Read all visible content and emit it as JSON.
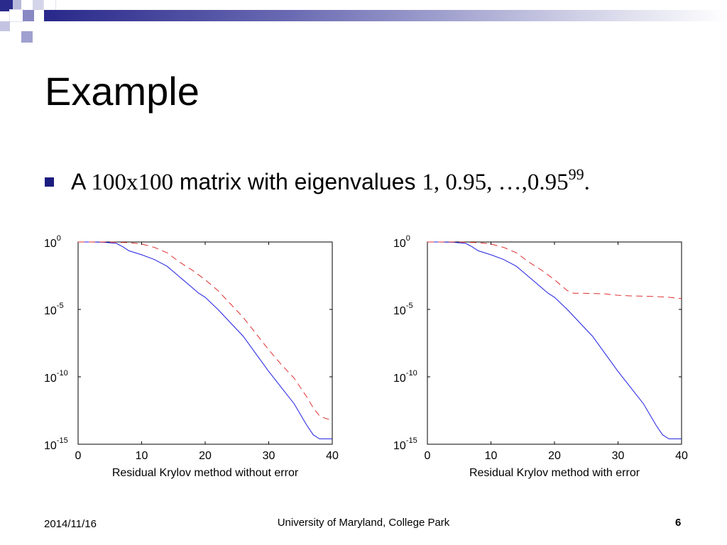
{
  "slide": {
    "title": "Example",
    "bullet": {
      "text_prefix": "A ",
      "matrix_size": "100x100",
      "text_mid": " matrix with eigenvalues ",
      "eigen_list": "1, 0.95, …,0.95",
      "eigen_exponent": "99",
      "text_suffix": "."
    },
    "footer": {
      "date": "2014/11/16",
      "institution": "University of Maryland, College Park",
      "page": "6"
    },
    "colors": {
      "accent": "#1c1c80",
      "line_solid": "#1f1fe0",
      "line_dashed": "#e03030"
    }
  },
  "chart_data": [
    {
      "type": "line",
      "title": "",
      "xlabel": "Residual Krylov method without error",
      "ylabel": "",
      "xlim": [
        0,
        40
      ],
      "ylim": [
        1e-15,
        1
      ],
      "yscale": "log",
      "x_ticks": [
        "0",
        "10",
        "20",
        "30",
        "40"
      ],
      "y_ticks": [
        {
          "base": "10",
          "exp": "0",
          "value": 0
        },
        {
          "base": "10",
          "exp": "-5",
          "value": -5
        },
        {
          "base": "10",
          "exp": "-10",
          "value": -10
        },
        {
          "base": "10",
          "exp": "-15",
          "value": -15
        }
      ],
      "series": [
        {
          "style": "solid",
          "color": "#1f1fe0",
          "x": [
            0,
            2,
            4,
            6,
            7,
            8,
            10,
            12,
            14,
            15,
            16,
            18,
            19,
            20,
            22,
            24,
            26,
            28,
            30,
            32,
            34,
            36,
            37,
            38,
            40
          ],
          "log10": [
            0,
            0,
            -0.02,
            -0.1,
            -0.35,
            -0.65,
            -0.95,
            -1.3,
            -1.8,
            -2.2,
            -2.6,
            -3.4,
            -3.8,
            -4.1,
            -5.0,
            -6.0,
            -7.0,
            -8.3,
            -9.6,
            -10.8,
            -12.0,
            -13.6,
            -14.3,
            -14.6,
            -14.6
          ]
        },
        {
          "style": "dashed",
          "color": "#e03030",
          "x": [
            0,
            2,
            4,
            6,
            8,
            10,
            12,
            14,
            16,
            18,
            20,
            22,
            24,
            26,
            28,
            30,
            32,
            34,
            36,
            37,
            38,
            39,
            40
          ],
          "log10": [
            0,
            0,
            0,
            -0.02,
            -0.05,
            -0.15,
            -0.4,
            -0.8,
            -1.5,
            -2.1,
            -2.8,
            -3.6,
            -4.6,
            -5.6,
            -6.8,
            -8.0,
            -9.1,
            -10.1,
            -11.5,
            -12.3,
            -12.9,
            -13.1,
            -13.2
          ]
        }
      ]
    },
    {
      "type": "line",
      "title": "",
      "xlabel": "Residual Krylov method with error",
      "ylabel": "",
      "xlim": [
        0,
        40
      ],
      "ylim": [
        1e-15,
        1
      ],
      "yscale": "log",
      "x_ticks": [
        "0",
        "10",
        "20",
        "30",
        "40"
      ],
      "y_ticks": [
        {
          "base": "10",
          "exp": "0",
          "value": 0
        },
        {
          "base": "10",
          "exp": "-5",
          "value": -5
        },
        {
          "base": "10",
          "exp": "-10",
          "value": -10
        },
        {
          "base": "10",
          "exp": "-15",
          "value": -15
        }
      ],
      "series": [
        {
          "style": "solid",
          "color": "#1f1fe0",
          "x": [
            0,
            2,
            4,
            6,
            7,
            8,
            10,
            12,
            14,
            15,
            16,
            18,
            19,
            20,
            22,
            24,
            26,
            28,
            30,
            32,
            34,
            36,
            37,
            38,
            40
          ],
          "log10": [
            0,
            0,
            -0.02,
            -0.1,
            -0.35,
            -0.65,
            -0.95,
            -1.3,
            -1.8,
            -2.2,
            -2.6,
            -3.4,
            -3.8,
            -4.1,
            -5.0,
            -6.0,
            -7.0,
            -8.3,
            -9.6,
            -10.8,
            -12.0,
            -13.6,
            -14.3,
            -14.6,
            -14.6
          ]
        },
        {
          "style": "dashed",
          "color": "#e03030",
          "x": [
            0,
            2,
            4,
            6,
            8,
            10,
            12,
            14,
            16,
            18,
            20,
            22,
            23,
            24,
            26,
            28,
            30,
            32,
            34,
            36,
            38,
            40
          ],
          "log10": [
            0,
            0,
            0,
            -0.02,
            -0.05,
            -0.15,
            -0.4,
            -0.8,
            -1.5,
            -2.1,
            -2.8,
            -3.6,
            -3.8,
            -3.8,
            -3.82,
            -3.85,
            -3.95,
            -4.0,
            -4.02,
            -4.05,
            -4.1,
            -4.2
          ]
        }
      ]
    }
  ]
}
